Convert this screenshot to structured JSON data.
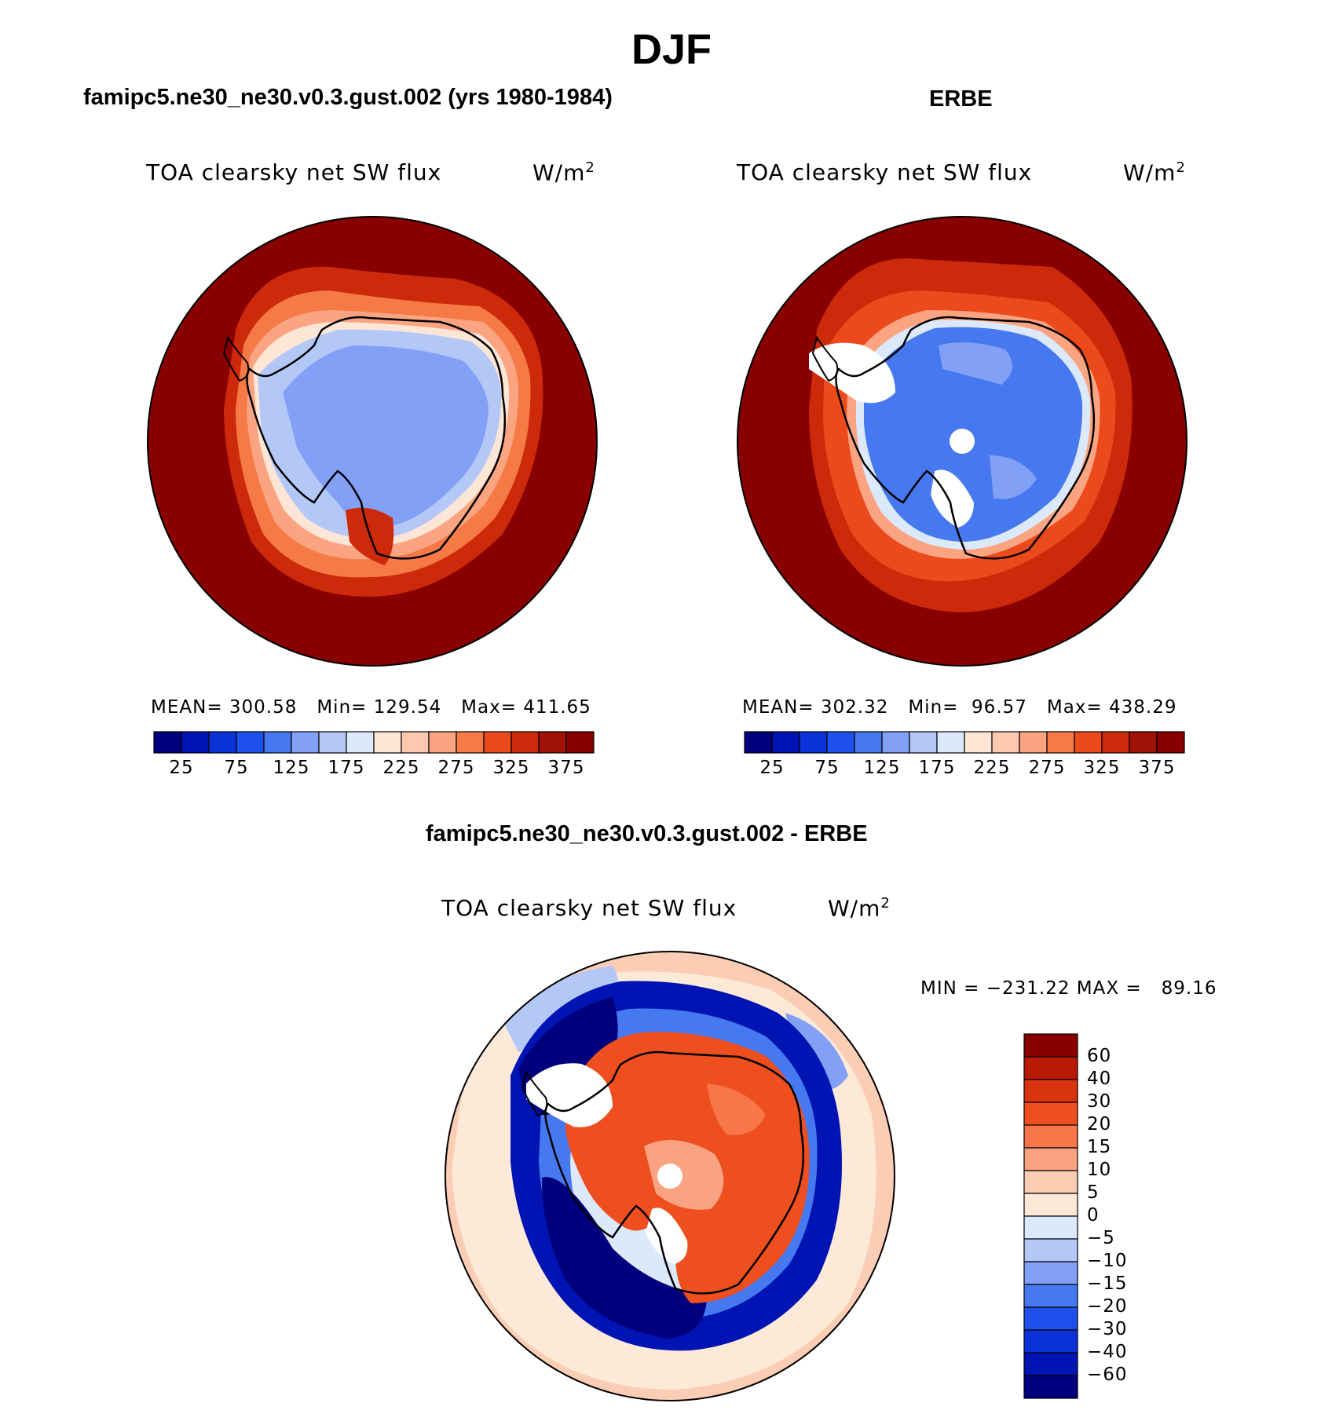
{
  "title": "DJF",
  "panels": [
    {
      "id": "model",
      "title": "famipc5.ne30_ne30.v0.3.gust.002 (yrs 1980-1984)",
      "variable": "TOA clearsky net SW flux",
      "units": "W/m",
      "units_sup": "2",
      "stats": {
        "mean_label": "MEAN=",
        "mean": "300.58",
        "min_label": "Min=",
        "min": "129.54",
        "max_label": "Max=",
        "max": "411.65"
      }
    },
    {
      "id": "obs",
      "title": "ERBE",
      "variable": "TOA clearsky net SW flux",
      "units": "W/m",
      "units_sup": "2",
      "stats": {
        "mean_label": "MEAN=",
        "mean": "302.32",
        "min_label": "Min=",
        "min": "96.57",
        "max_label": "Max=",
        "max": "438.29"
      }
    },
    {
      "id": "diff",
      "title": "famipc5.ne30_ne30.v0.3.gust.002 - ERBE",
      "variable": "TOA clearsky net SW flux",
      "units": "W/m",
      "units_sup": "2",
      "stats_text": "MIN = −231.22 MAX =   89.16"
    }
  ],
  "abs_colorbar": {
    "labels": [
      "25",
      "75",
      "125",
      "175",
      "225",
      "275",
      "325",
      "375"
    ],
    "colors": [
      "#00007e",
      "#0014b4",
      "#0a32d8",
      "#1e50ec",
      "#4678f0",
      "#82a0f5",
      "#b4c8f8",
      "#dce9fb",
      "#fde6d6",
      "#fcc8b0",
      "#fba482",
      "#f57a46",
      "#ec4a1c",
      "#cc2a0a",
      "#a01206",
      "#880000"
    ]
  },
  "diff_colorbar": {
    "labels": [
      "60",
      "40",
      "30",
      "20",
      "15",
      "10",
      "5",
      "0",
      "−5",
      "−10",
      "−15",
      "−20",
      "−30",
      "−40",
      "−60"
    ],
    "colors": [
      "#880000",
      "#b81a04",
      "#d83410",
      "#ef4f1e",
      "#f7774a",
      "#f9a382",
      "#fbcdb4",
      "#fde9d8",
      "#dce9fb",
      "#b4c8f8",
      "#82a0f5",
      "#4678f0",
      "#1e50ec",
      "#0a32d8",
      "#0014b4",
      "#00007e"
    ]
  },
  "map_colors": {
    "ocean_high": "#880000",
    "ice_model_outer": "#b4c8f8",
    "ice_model_inner": "#82a0f5",
    "ice_obs": "#4678f0",
    "diff_ocean": "#fbcdb4",
    "diff_ice": "#ef4f1e",
    "diff_ring": "#0014b4",
    "coastline": "#000000",
    "missing": "#ffffff"
  }
}
